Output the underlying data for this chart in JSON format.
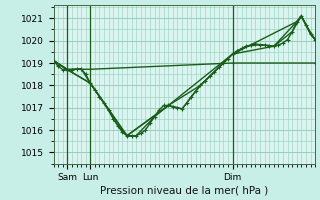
{
  "bg_color": "#c8eee8",
  "plot_bg_color": "#daf5f0",
  "grid_color": "#99ccbb",
  "line_color": "#1a5c1a",
  "marker_color": "#1a5c1a",
  "xlabel": "Pression niveau de la mer( hPa )",
  "xlabel_fontsize": 7.5,
  "tick_fontsize": 6.5,
  "ylim": [
    1014.5,
    1021.6
  ],
  "yticks": [
    1015,
    1016,
    1017,
    1018,
    1019,
    1020,
    1021
  ],
  "day_labels": [
    [
      "Sam",
      15
    ],
    [
      "Lun",
      40
    ],
    [
      "Dim",
      195
    ]
  ],
  "day_vlines": [
    15,
    40,
    195
  ],
  "xlim": [
    0,
    285
  ],
  "series1": [
    [
      0,
      1019.1
    ],
    [
      5,
      1018.85
    ],
    [
      10,
      1018.7
    ],
    [
      15,
      1018.7
    ],
    [
      20,
      1018.7
    ],
    [
      25,
      1018.72
    ],
    [
      30,
      1018.74
    ],
    [
      35,
      1018.5
    ],
    [
      40,
      1018.1
    ],
    [
      45,
      1017.8
    ],
    [
      50,
      1017.5
    ],
    [
      55,
      1017.2
    ],
    [
      60,
      1016.9
    ],
    [
      65,
      1016.5
    ],
    [
      70,
      1016.2
    ],
    [
      75,
      1015.9
    ],
    [
      80,
      1015.75
    ],
    [
      85,
      1015.72
    ],
    [
      90,
      1015.75
    ],
    [
      95,
      1015.85
    ],
    [
      100,
      1016.0
    ],
    [
      105,
      1016.3
    ],
    [
      110,
      1016.6
    ],
    [
      115,
      1016.9
    ],
    [
      120,
      1017.1
    ],
    [
      125,
      1017.1
    ],
    [
      130,
      1017.05
    ],
    [
      135,
      1017.0
    ],
    [
      140,
      1016.95
    ],
    [
      145,
      1017.2
    ],
    [
      150,
      1017.5
    ],
    [
      155,
      1017.75
    ],
    [
      160,
      1018.0
    ],
    [
      165,
      1018.2
    ],
    [
      170,
      1018.4
    ],
    [
      175,
      1018.6
    ],
    [
      180,
      1018.8
    ],
    [
      185,
      1019.0
    ],
    [
      190,
      1019.2
    ],
    [
      195,
      1019.4
    ],
    [
      200,
      1019.55
    ],
    [
      205,
      1019.65
    ],
    [
      210,
      1019.75
    ],
    [
      215,
      1019.8
    ],
    [
      220,
      1019.85
    ],
    [
      225,
      1019.82
    ],
    [
      230,
      1019.8
    ],
    [
      235,
      1019.78
    ],
    [
      240,
      1019.75
    ],
    [
      245,
      1019.8
    ],
    [
      250,
      1019.9
    ],
    [
      255,
      1020.05
    ],
    [
      260,
      1020.4
    ],
    [
      265,
      1020.85
    ],
    [
      270,
      1021.1
    ],
    [
      275,
      1020.7
    ],
    [
      280,
      1020.3
    ],
    [
      285,
      1020.05
    ]
  ],
  "series2": [
    [
      0,
      1019.1
    ],
    [
      15,
      1018.7
    ],
    [
      30,
      1018.74
    ],
    [
      40,
      1018.1
    ],
    [
      55,
      1017.2
    ],
    [
      70,
      1016.2
    ],
    [
      80,
      1015.75
    ],
    [
      90,
      1015.75
    ],
    [
      110,
      1016.6
    ],
    [
      125,
      1017.1
    ],
    [
      140,
      1016.95
    ],
    [
      160,
      1018.0
    ],
    [
      185,
      1019.0
    ],
    [
      195,
      1019.4
    ],
    [
      210,
      1019.75
    ],
    [
      225,
      1019.82
    ],
    [
      240,
      1019.75
    ],
    [
      260,
      1020.4
    ],
    [
      270,
      1021.1
    ],
    [
      280,
      1020.3
    ],
    [
      285,
      1020.05
    ]
  ],
  "series3": [
    [
      0,
      1019.1
    ],
    [
      15,
      1018.7
    ],
    [
      40,
      1018.1
    ],
    [
      80,
      1015.75
    ],
    [
      125,
      1017.1
    ],
    [
      160,
      1018.0
    ],
    [
      195,
      1019.4
    ],
    [
      240,
      1019.75
    ],
    [
      265,
      1020.85
    ],
    [
      270,
      1021.1
    ],
    [
      275,
      1020.7
    ],
    [
      280,
      1020.3
    ],
    [
      285,
      1020.05
    ]
  ],
  "series4": [
    [
      0,
      1019.1
    ],
    [
      15,
      1018.7
    ],
    [
      40,
      1018.1
    ],
    [
      80,
      1015.75
    ],
    [
      125,
      1017.1
    ],
    [
      195,
      1019.4
    ],
    [
      265,
      1020.85
    ],
    [
      270,
      1021.1
    ],
    [
      275,
      1020.7
    ],
    [
      285,
      1020.05
    ]
  ],
  "series5": [
    [
      0,
      1019.1
    ],
    [
      15,
      1018.72
    ],
    [
      40,
      1018.72
    ],
    [
      195,
      1019.0
    ],
    [
      285,
      1019.0
    ]
  ]
}
